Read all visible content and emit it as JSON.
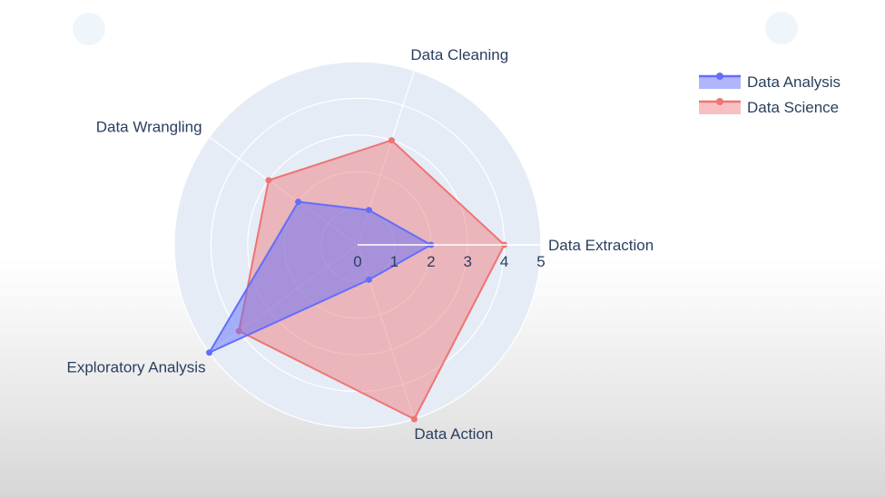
{
  "chart_data": {
    "type": "radar",
    "axes": [
      "Data Extraction",
      "Data Cleaning",
      "Data Wrangling",
      "Exploratory Analysis",
      "Data Action"
    ],
    "radial_range": [
      0,
      5
    ],
    "radial_ticks": [
      "0",
      "1",
      "2",
      "3",
      "4",
      "5"
    ],
    "series": [
      {
        "name": "Data Analysis",
        "values": [
          2,
          1,
          2,
          5,
          1
        ],
        "color": "#636efa",
        "fill": "rgba(99,110,250,0.5)"
      },
      {
        "name": "Data Science",
        "values": [
          4,
          3,
          3,
          4,
          5
        ],
        "color": "#ef7474",
        "fill": "rgba(239,116,116,0.45)"
      }
    ],
    "legend_position": "top-right",
    "polar_background": "#e5ecf6",
    "grid": true
  }
}
